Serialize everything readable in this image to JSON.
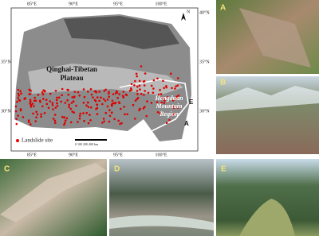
{
  "map": {
    "longitude_labels": [
      "85°E",
      "90°E",
      "95°E",
      "100°E"
    ],
    "latitude_labels_left": [
      "35°N",
      "30°N"
    ],
    "latitude_labels_right": [
      "40°N",
      "35°N",
      "30°N"
    ],
    "plateau_label": [
      "Qinghai-Tibetan",
      "Plateau"
    ],
    "region_label": [
      "Hengduan",
      "Mountain",
      "Region"
    ],
    "legend_label": "Landslide site",
    "scale_label": "0  100 200      400 km",
    "north": "N",
    "site_letters": [
      "A",
      "E"
    ]
  },
  "panels": [
    "A",
    "B",
    "C",
    "D",
    "E"
  ]
}
